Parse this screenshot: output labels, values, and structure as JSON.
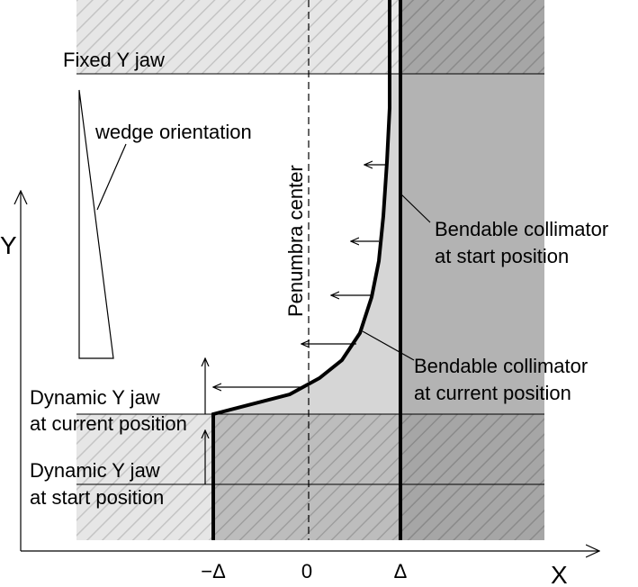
{
  "labels": {
    "fixed_jaw": "Fixed Y jaw",
    "wedge": "wedge orientation",
    "penumbra": "Penumbra center",
    "collimator_start": [
      "Bendable collimator",
      "at start position"
    ],
    "collimator_current": [
      "Bendable collimator",
      "at current position"
    ],
    "dynamic_current": [
      "Dynamic Y jaw",
      "at current position"
    ],
    "dynamic_start": [
      "Dynamic Y jaw",
      "at start position"
    ],
    "y_axis": "Y",
    "x_axis": "X",
    "x_ticks": [
      "−Δ",
      "0",
      "Δ"
    ]
  }
}
